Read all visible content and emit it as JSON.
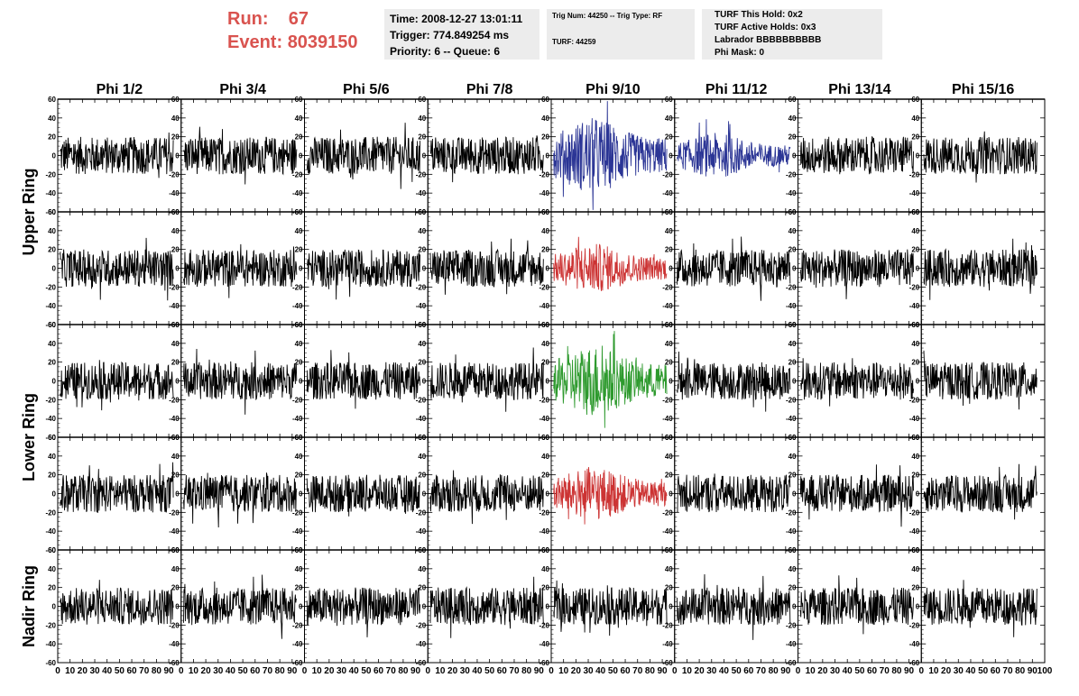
{
  "header": {
    "run_label": "Run:",
    "run_value": "67",
    "event_label": "Event:",
    "event_value": "8039150",
    "accent_color": "#d9534f"
  },
  "info_boxes": {
    "box1": {
      "time": "Time: 2008-12-27 13:01:11",
      "trigger": "Trigger: 774.849254 ms",
      "priority": "Priority: 6 -- Queue: 6"
    },
    "box2": {
      "trig": "Trig Num: 44250 -- Trig Type: RF",
      "turf": "TURF: 44259"
    },
    "box3": {
      "this_hold": "TURF This Hold: 0x2",
      "active_holds": "TURF Active Holds: 0x3",
      "labrador": "Labrador BBBBBBBBBB",
      "phi_mask": "Phi Mask: 0"
    }
  },
  "chart_data": {
    "type": "line",
    "columns": [
      "Phi 1/2",
      "Phi 3/4",
      "Phi 5/6",
      "Phi 7/8",
      "Phi 9/10",
      "Phi 11/12",
      "Phi 13/14",
      "Phi 15/16"
    ],
    "ring_labels": [
      {
        "label": "Upper Ring",
        "rows": [
          0,
          1
        ]
      },
      {
        "label": "Lower Ring",
        "rows": [
          2,
          3
        ]
      },
      {
        "label": "Nadir Ring",
        "rows": [
          4,
          4
        ]
      }
    ],
    "rows": 5,
    "ylim": [
      -60,
      60
    ],
    "xlim": [
      0,
      100
    ],
    "y_ticks": [
      -60,
      -40,
      -20,
      0,
      20,
      40,
      60
    ],
    "x_ticks": [
      0,
      10,
      20,
      30,
      40,
      50,
      60,
      70,
      80,
      90,
      100
    ],
    "x_tick_labels": [
      "0",
      "10",
      "20",
      "30",
      "40",
      "50",
      "60",
      "70",
      "80",
      "90",
      "100"
    ],
    "y_tick_labels": [
      "-60",
      "-40",
      "-20",
      "0",
      "20",
      "40",
      "60"
    ],
    "samples_per_trace": 260,
    "trace_colors": {
      "default": "#000000",
      "blue": "#2b3595",
      "red": "#cc3333",
      "green": "#2e9a2e"
    },
    "highlight": [
      {
        "row": 0,
        "col": 4,
        "color": "blue",
        "amplitude": 34
      },
      {
        "row": 0,
        "col": 5,
        "color": "blue",
        "amplitude": 20
      },
      {
        "row": 1,
        "col": 4,
        "color": "red",
        "amplitude": 22
      },
      {
        "row": 2,
        "col": 4,
        "color": "green",
        "amplitude": 32
      },
      {
        "row": 3,
        "col": 4,
        "color": "red",
        "amplitude": 24
      }
    ],
    "default_amplitude": 20
  }
}
